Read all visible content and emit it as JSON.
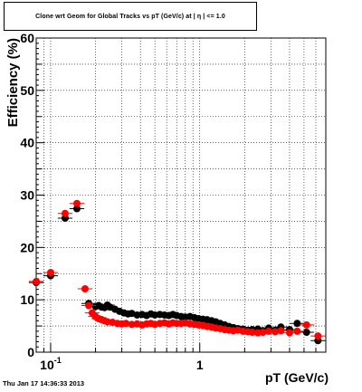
{
  "title": "Clone wrt Geom for Global Tracks vs pT (GeV/c) at | η | <= 1.0",
  "footer": "Thu Jan 17 14:36:33 2013",
  "chart_data": {
    "type": "scatter",
    "xlabel": "pT (GeV/c)",
    "ylabel": "Efficiency (%)",
    "xscale": "log",
    "xlim": [
      0.08,
      7.0
    ],
    "ylim": [
      0,
      60
    ],
    "yticks": [
      0,
      10,
      20,
      30,
      40,
      50,
      60
    ],
    "ytick_labels": [
      "0",
      "10",
      "20",
      "30",
      "40",
      "50",
      "60"
    ],
    "xtick_major": [
      0.1,
      1
    ],
    "xtick_labels": [
      "10-1",
      "1"
    ],
    "grid": true,
    "series": [
      {
        "color": "#000000",
        "x": [
          0.08,
          0.1,
          0.125,
          0.15,
          0.18,
          0.2,
          0.21,
          0.22,
          0.23,
          0.24,
          0.25,
          0.27,
          0.29,
          0.31,
          0.33,
          0.35,
          0.38,
          0.41,
          0.44,
          0.47,
          0.5,
          0.54,
          0.58,
          0.62,
          0.66,
          0.7,
          0.75,
          0.8,
          0.86,
          0.92,
          0.98,
          1.05,
          1.12,
          1.2,
          1.28,
          1.37,
          1.47,
          1.57,
          1.68,
          1.8,
          1.95,
          2.1,
          2.25,
          2.45,
          2.65,
          2.9,
          3.2,
          3.5,
          4.0,
          4.5,
          5.2,
          6.2
        ],
        "y": [
          13.3,
          14.6,
          25.6,
          27.4,
          9.3,
          8.7,
          8.9,
          8.6,
          8.5,
          9.0,
          8.6,
          8.2,
          7.8,
          7.5,
          7.3,
          7.4,
          7.1,
          7.2,
          7.0,
          7.3,
          7.1,
          7.2,
          7.1,
          7.0,
          7.2,
          7.0,
          6.8,
          6.7,
          6.8,
          6.6,
          6.4,
          6.3,
          6.2,
          6.0,
          5.8,
          5.5,
          5.2,
          4.9,
          4.7,
          4.5,
          4.4,
          4.2,
          4.3,
          4.4,
          4.1,
          4.6,
          4.2,
          4.8,
          4.3,
          5.5,
          3.8,
          2.2
        ]
      },
      {
        "color": "#ff0000",
        "x": [
          0.08,
          0.1,
          0.125,
          0.15,
          0.17,
          0.18,
          0.19,
          0.2,
          0.21,
          0.22,
          0.23,
          0.24,
          0.26,
          0.28,
          0.3,
          0.32,
          0.35,
          0.38,
          0.41,
          0.44,
          0.47,
          0.5,
          0.54,
          0.58,
          0.62,
          0.66,
          0.7,
          0.75,
          0.8,
          0.86,
          0.92,
          0.98,
          1.05,
          1.12,
          1.2,
          1.28,
          1.37,
          1.47,
          1.57,
          1.68,
          1.8,
          1.95,
          2.1,
          2.25,
          2.45,
          2.65,
          2.9,
          3.2,
          3.5,
          4.0,
          4.5,
          5.2,
          6.2
        ],
        "y": [
          13.5,
          15.2,
          26.5,
          28.4,
          12.1,
          8.9,
          7.5,
          6.8,
          6.4,
          6.2,
          6.0,
          5.8,
          5.7,
          5.5,
          5.4,
          5.5,
          5.3,
          5.4,
          5.2,
          5.4,
          5.5,
          5.3,
          5.5,
          5.6,
          5.4,
          5.6,
          5.5,
          5.5,
          5.6,
          5.4,
          5.3,
          5.2,
          5.1,
          4.9,
          4.8,
          4.6,
          4.5,
          4.3,
          4.2,
          4.1,
          4.2,
          4.0,
          3.9,
          3.8,
          3.7,
          3.8,
          4.0,
          3.9,
          4.1,
          3.7,
          4.0,
          5.2,
          3.1
        ]
      }
    ]
  }
}
